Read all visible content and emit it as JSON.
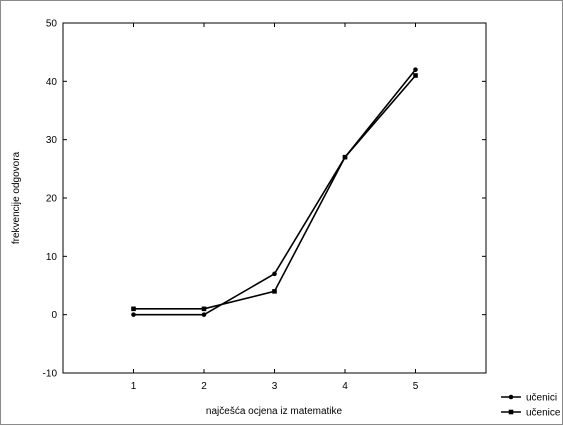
{
  "chart_data": {
    "type": "line",
    "title": "",
    "xlabel": "najčešća ocjena iz matematike",
    "ylabel": "frekvencije odgovora",
    "x": [
      1,
      2,
      3,
      4,
      5
    ],
    "xticks": [
      "1",
      "2",
      "3",
      "4",
      "5"
    ],
    "xlim": [
      0,
      6
    ],
    "yticks": [
      "-10",
      "0",
      "10",
      "20",
      "30",
      "40",
      "50"
    ],
    "ylim": [
      -10,
      50
    ],
    "grid": false,
    "legend_position": "bottom-right",
    "series": [
      {
        "name": "učenici",
        "marker": "circle",
        "color": "#000000",
        "values": [
          0,
          0,
          7,
          27,
          42
        ]
      },
      {
        "name": "učenice",
        "marker": "square",
        "color": "#000000",
        "values": [
          1,
          1,
          4,
          27,
          41
        ]
      }
    ]
  }
}
